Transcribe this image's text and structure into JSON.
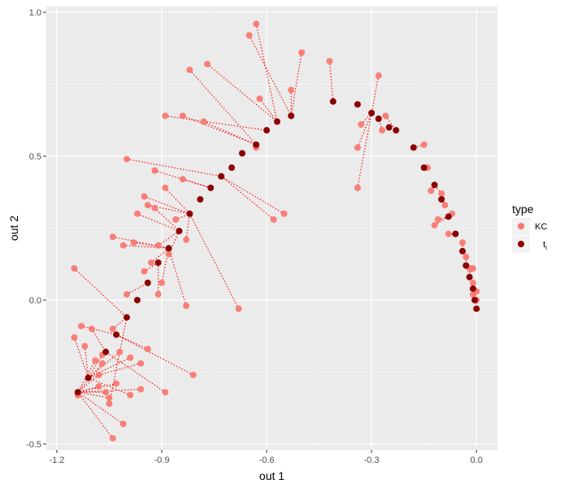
{
  "chart_data": {
    "type": "scatter",
    "title": "",
    "xlabel": "out 1",
    "ylabel": "out 2",
    "xlim": [
      -1.23,
      0.06
    ],
    "ylim": [
      -0.52,
      1.02
    ],
    "x_ticks": [
      -1.2,
      -0.9,
      -0.3,
      0.0
    ],
    "x_tick_labels": [
      "-1.2",
      "-0.9",
      "-0.3",
      "0.0"
    ],
    "x_grid_major": [
      -1.2,
      -0.9,
      -0.6,
      -0.3,
      0.0
    ],
    "x_tick_label_at_minus_0_6": "-0.6",
    "y_ticks": [
      -0.5,
      0.0,
      0.5,
      1.0
    ],
    "y_tick_labels": [
      "-0.5",
      "0.0",
      "0.5",
      "1.0"
    ],
    "grid": true,
    "panel_background": "#ebebeb",
    "connector_color": "#ff0000",
    "connector_style": "dotted",
    "legend": {
      "title": "type",
      "position": "right",
      "entries": [
        {
          "label": "KC",
          "color": "#f8766d"
        },
        {
          "label": "t",
          "subscript": "i",
          "color": "#8b0000"
        }
      ]
    },
    "series": [
      {
        "name": "KC",
        "color": "#f8766d",
        "points": [
          [
            -1.14,
            -0.33
          ],
          [
            -1.15,
            0.11
          ],
          [
            -1.15,
            -0.13
          ],
          [
            -1.13,
            -0.09
          ],
          [
            -1.12,
            -0.16
          ],
          [
            -1.1,
            -0.1
          ],
          [
            -1.09,
            -0.21
          ],
          [
            -1.08,
            -0.3
          ],
          [
            -1.08,
            -0.26
          ],
          [
            -1.07,
            -0.19
          ],
          [
            -1.07,
            -0.22
          ],
          [
            -1.06,
            -0.32
          ],
          [
            -1.05,
            -0.34
          ],
          [
            -1.05,
            -0.36
          ],
          [
            -1.04,
            -0.48
          ],
          [
            -1.04,
            -0.1
          ],
          [
            -1.04,
            0.22
          ],
          [
            -1.03,
            -0.29
          ],
          [
            -1.02,
            -0.18
          ],
          [
            -1.01,
            -0.43
          ],
          [
            -1.01,
            0.19
          ],
          [
            -1.0,
            0.02
          ],
          [
            -1.0,
            0.49
          ],
          [
            -0.99,
            -0.2
          ],
          [
            -0.99,
            -0.33
          ],
          [
            -0.98,
            0.2
          ],
          [
            -0.97,
            0.3
          ],
          [
            -0.96,
            -0.22
          ],
          [
            -0.96,
            -0.31
          ],
          [
            -0.95,
            0.36
          ],
          [
            -0.95,
            0.1
          ],
          [
            -0.94,
            0.33
          ],
          [
            -0.94,
            -0.17
          ],
          [
            -0.93,
            0.13
          ],
          [
            -0.92,
            0.45
          ],
          [
            -0.92,
            0.32
          ],
          [
            -0.91,
            0.02
          ],
          [
            -0.91,
            0.19
          ],
          [
            -0.9,
            0.06
          ],
          [
            -0.89,
            0.39
          ],
          [
            -0.89,
            -0.32
          ],
          [
            -0.89,
            0.64
          ],
          [
            -0.88,
            0.16
          ],
          [
            -0.86,
            0.28
          ],
          [
            -0.84,
            0.42
          ],
          [
            -0.84,
            0.64
          ],
          [
            -0.83,
            0.21
          ],
          [
            -0.83,
            -0.02
          ],
          [
            -0.82,
            0.8
          ],
          [
            -0.81,
            -0.26
          ],
          [
            -0.78,
            0.62
          ],
          [
            -0.77,
            0.82
          ],
          [
            -0.68,
            -0.03
          ],
          [
            -0.65,
            0.92
          ],
          [
            -0.63,
            0.96
          ],
          [
            -0.63,
            0.53
          ],
          [
            -0.62,
            0.7
          ],
          [
            -0.58,
            0.28
          ],
          [
            -0.55,
            0.3
          ],
          [
            -0.53,
            0.73
          ],
          [
            -0.5,
            0.86
          ],
          [
            -0.42,
            0.83
          ],
          [
            -0.34,
            0.53
          ],
          [
            -0.34,
            0.39
          ],
          [
            -0.33,
            0.61
          ],
          [
            -0.28,
            0.78
          ],
          [
            -0.27,
            0.59
          ],
          [
            -0.26,
            0.64
          ],
          [
            -0.15,
            0.54
          ],
          [
            -0.14,
            0.46
          ],
          [
            -0.13,
            0.38
          ],
          [
            -0.12,
            0.26
          ],
          [
            -0.11,
            0.28
          ],
          [
            -0.1,
            0.37
          ],
          [
            -0.09,
            0.33
          ],
          [
            -0.08,
            0.23
          ],
          [
            -0.07,
            0.3
          ],
          [
            -0.06,
            0.23
          ],
          [
            -0.04,
            0.2
          ],
          [
            -0.03,
            0.15
          ],
          [
            -0.02,
            0.11
          ],
          [
            -0.01,
            0.06
          ],
          [
            0.0,
            0.03
          ],
          [
            -0.01,
            0.02
          ],
          [
            0.0,
            0.0
          ],
          [
            -0.01,
            0.11
          ]
        ]
      },
      {
        "name": "t",
        "color": "#8b0000",
        "points": [
          [
            -1.14,
            -0.32
          ],
          [
            -1.11,
            -0.27
          ],
          [
            -1.06,
            -0.18
          ],
          [
            -1.03,
            -0.12
          ],
          [
            -1.0,
            -0.06
          ],
          [
            -0.97,
            0.0
          ],
          [
            -0.94,
            0.06
          ],
          [
            -0.91,
            0.13
          ],
          [
            -0.88,
            0.18
          ],
          [
            -0.85,
            0.24
          ],
          [
            -0.82,
            0.3
          ],
          [
            -0.79,
            0.35
          ],
          [
            -0.76,
            0.39
          ],
          [
            -0.73,
            0.43
          ],
          [
            -0.7,
            0.46
          ],
          [
            -0.67,
            0.51
          ],
          [
            -0.63,
            0.54
          ],
          [
            -0.6,
            0.59
          ],
          [
            -0.57,
            0.62
          ],
          [
            -0.53,
            0.64
          ],
          [
            -0.41,
            0.69
          ],
          [
            -0.34,
            0.68
          ],
          [
            -0.3,
            0.65
          ],
          [
            -0.28,
            0.63
          ],
          [
            -0.25,
            0.6
          ],
          [
            -0.23,
            0.59
          ],
          [
            -0.18,
            0.53
          ],
          [
            -0.15,
            0.46
          ],
          [
            -0.12,
            0.4
          ],
          [
            -0.1,
            0.35
          ],
          [
            -0.08,
            0.29
          ],
          [
            -0.06,
            0.23
          ],
          [
            -0.04,
            0.17
          ],
          [
            -0.03,
            0.12
          ],
          [
            -0.02,
            0.08
          ],
          [
            -0.01,
            0.04
          ],
          [
            -0.005,
            0.0
          ],
          [
            0.0,
            -0.03
          ]
        ]
      }
    ],
    "connections": [
      [
        0,
        0
      ],
      [
        1,
        4
      ],
      [
        2,
        1
      ],
      [
        3,
        3
      ],
      [
        4,
        1
      ],
      [
        5,
        2
      ],
      [
        6,
        0
      ],
      [
        7,
        0
      ],
      [
        8,
        0
      ],
      [
        9,
        1
      ],
      [
        10,
        0
      ],
      [
        11,
        0
      ],
      [
        12,
        0
      ],
      [
        13,
        4
      ],
      [
        14,
        0
      ],
      [
        15,
        4
      ],
      [
        16,
        8
      ],
      [
        17,
        0
      ],
      [
        18,
        1
      ],
      [
        19,
        0
      ],
      [
        20,
        8
      ],
      [
        21,
        6
      ],
      [
        22,
        13
      ],
      [
        23,
        1
      ],
      [
        24,
        1
      ],
      [
        25,
        8
      ],
      [
        26,
        9
      ],
      [
        27,
        1
      ],
      [
        28,
        0
      ],
      [
        29,
        10
      ],
      [
        30,
        7
      ],
      [
        31,
        10
      ],
      [
        32,
        3
      ],
      [
        33,
        8
      ],
      [
        34,
        12
      ],
      [
        35,
        9
      ],
      [
        36,
        7
      ],
      [
        37,
        9
      ],
      [
        38,
        8
      ],
      [
        39,
        10
      ],
      [
        40,
        2
      ],
      [
        41,
        17
      ],
      [
        42,
        9
      ],
      [
        43,
        10
      ],
      [
        44,
        12
      ],
      [
        45,
        16
      ],
      [
        46,
        10
      ],
      [
        47,
        8
      ],
      [
        48,
        16
      ],
      [
        49,
        3
      ],
      [
        50,
        16
      ],
      [
        51,
        18
      ],
      [
        52,
        10
      ],
      [
        53,
        19
      ],
      [
        54,
        18
      ],
      [
        55,
        16
      ],
      [
        56,
        18
      ],
      [
        57,
        13
      ],
      [
        58,
        13
      ],
      [
        59,
        19
      ],
      [
        60,
        19
      ],
      [
        61,
        20
      ],
      [
        62,
        22
      ],
      [
        63,
        22
      ],
      [
        64,
        22
      ],
      [
        65,
        22
      ],
      [
        66,
        23
      ],
      [
        67,
        25
      ],
      [
        68,
        26
      ],
      [
        69,
        27
      ],
      [
        70,
        28
      ],
      [
        71,
        30
      ],
      [
        72,
        30
      ],
      [
        73,
        28
      ],
      [
        74,
        29
      ],
      [
        75,
        31
      ],
      [
        76,
        30
      ],
      [
        77,
        31
      ],
      [
        78,
        32
      ],
      [
        79,
        33
      ],
      [
        80,
        34
      ],
      [
        81,
        35
      ],
      [
        82,
        36
      ],
      [
        83,
        36
      ],
      [
        84,
        37
      ],
      [
        85,
        34
      ]
    ]
  }
}
